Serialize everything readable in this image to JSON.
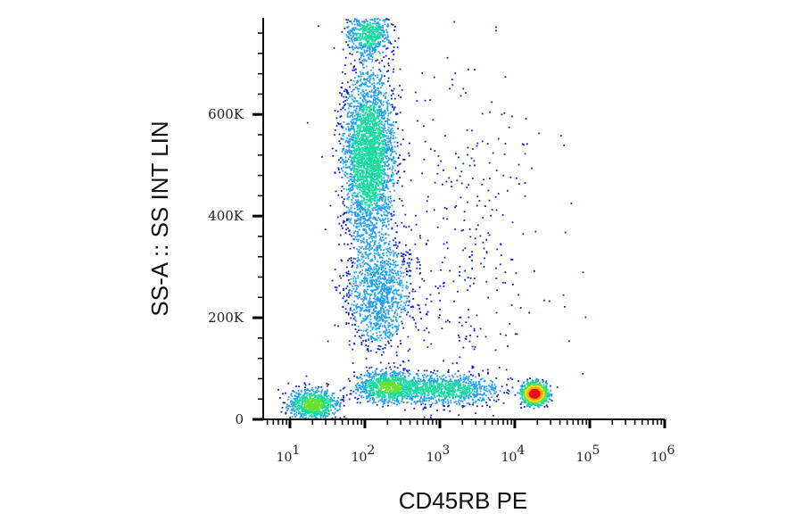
{
  "chart_data": {
    "type": "scatter",
    "title": "",
    "xlabel": "CD45RB PE",
    "ylabel": "SS-A :: SS INT LIN",
    "x_scale": "log",
    "y_scale": "linear",
    "xlim": [
      4.4,
      1000000
    ],
    "ylim": [
      0,
      790000
    ],
    "x_ticks": [
      {
        "value": 10,
        "base": "10",
        "exp": "1"
      },
      {
        "value": 100,
        "base": "10",
        "exp": "2"
      },
      {
        "value": 1000,
        "base": "10",
        "exp": "3"
      },
      {
        "value": 10000,
        "base": "10",
        "exp": "4"
      },
      {
        "value": 100000,
        "base": "10",
        "exp": "5"
      },
      {
        "value": 1000000,
        "base": "10",
        "exp": "6"
      }
    ],
    "y_ticks": [
      {
        "value": 0,
        "label": "0"
      },
      {
        "value": 200000,
        "label": "200K"
      },
      {
        "value": 400000,
        "label": "400K"
      },
      {
        "value": 600000,
        "label": "600K"
      }
    ],
    "grid": false,
    "legend": "none",
    "density_colormap": [
      "#0a1fd0",
      "#1ea0f0",
      "#19d9a0",
      "#6ae030",
      "#f0e020",
      "#f5a010",
      "#e81010"
    ],
    "populations": [
      {
        "center_x": 110,
        "center_y": 520000,
        "spread_x_decades": 0.17,
        "spread_y": 85000,
        "weight": 0.34
      },
      {
        "center_x": 150,
        "center_y": 250000,
        "spread_x_decades": 0.22,
        "spread_y": 55000,
        "weight": 0.13
      },
      {
        "center_x": 20,
        "center_y": 30000,
        "spread_x_decades": 0.16,
        "spread_y": 15000,
        "weight": 0.09
      },
      {
        "center_x": 200,
        "center_y": 65000,
        "spread_x_decades": 0.2,
        "spread_y": 15000,
        "weight": 0.1
      },
      {
        "center_x": 1200,
        "center_y": 60000,
        "spread_x_decades": 0.35,
        "spread_y": 15000,
        "weight": 0.1
      },
      {
        "center_x": 18000,
        "center_y": 52000,
        "spread_x_decades": 0.08,
        "spread_y": 10000,
        "weight": 0.14
      },
      {
        "center_x": 110,
        "center_y": 760000,
        "spread_x_decades": 0.14,
        "spread_y": 20000,
        "weight": 0.06
      },
      {
        "center_x": 2000,
        "center_y": 330000,
        "spread_x_decades": 0.55,
        "spread_y": 190000,
        "weight": 0.04
      }
    ]
  }
}
